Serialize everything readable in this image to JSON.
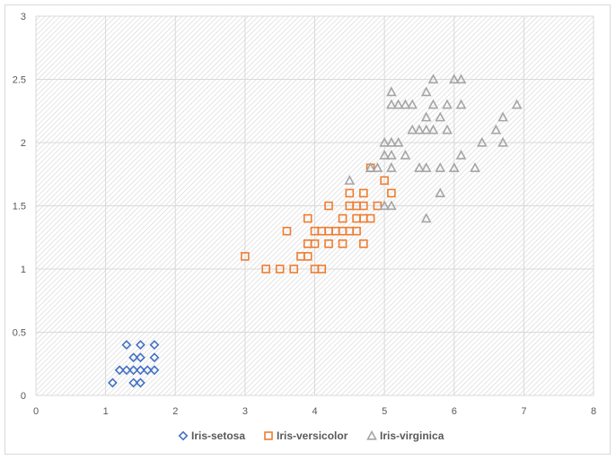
{
  "chart_data": {
    "type": "scatter",
    "title": "",
    "xlabel": "",
    "ylabel": "",
    "xlim": [
      0,
      8
    ],
    "ylim": [
      0,
      3
    ],
    "x_ticks": [
      "0",
      "1",
      "2",
      "3",
      "4",
      "5",
      "6",
      "7",
      "8"
    ],
    "y_ticks": [
      "0",
      "0.5",
      "1",
      "1.5",
      "2",
      "2.5",
      "3"
    ],
    "grid": true,
    "legend_position": "bottom",
    "series": [
      {
        "name": "Iris-setosa",
        "marker": "diamond",
        "color": "#4472c4",
        "points": [
          [
            1.1,
            0.1
          ],
          [
            1.2,
            0.2
          ],
          [
            1.3,
            0.2
          ],
          [
            1.3,
            0.4
          ],
          [
            1.4,
            0.1
          ],
          [
            1.4,
            0.2
          ],
          [
            1.4,
            0.3
          ],
          [
            1.5,
            0.1
          ],
          [
            1.5,
            0.2
          ],
          [
            1.5,
            0.3
          ],
          [
            1.5,
            0.4
          ],
          [
            1.6,
            0.2
          ],
          [
            1.7,
            0.2
          ],
          [
            1.7,
            0.3
          ],
          [
            1.7,
            0.4
          ]
        ]
      },
      {
        "name": "Iris-versicolor",
        "marker": "square",
        "color": "#ed7d31",
        "points": [
          [
            3.0,
            1.1
          ],
          [
            3.3,
            1.0
          ],
          [
            3.5,
            1.0
          ],
          [
            3.6,
            1.3
          ],
          [
            3.7,
            1.0
          ],
          [
            3.8,
            1.1
          ],
          [
            3.9,
            1.1
          ],
          [
            3.9,
            1.2
          ],
          [
            3.9,
            1.4
          ],
          [
            4.0,
            1.0
          ],
          [
            4.0,
            1.2
          ],
          [
            4.0,
            1.3
          ],
          [
            4.1,
            1.0
          ],
          [
            4.1,
            1.3
          ],
          [
            4.2,
            1.2
          ],
          [
            4.2,
            1.3
          ],
          [
            4.2,
            1.5
          ],
          [
            4.3,
            1.3
          ],
          [
            4.4,
            1.2
          ],
          [
            4.4,
            1.3
          ],
          [
            4.4,
            1.4
          ],
          [
            4.5,
            1.3
          ],
          [
            4.5,
            1.5
          ],
          [
            4.5,
            1.6
          ],
          [
            4.6,
            1.3
          ],
          [
            4.6,
            1.4
          ],
          [
            4.6,
            1.5
          ],
          [
            4.7,
            1.2
          ],
          [
            4.7,
            1.4
          ],
          [
            4.7,
            1.5
          ],
          [
            4.7,
            1.6
          ],
          [
            4.8,
            1.4
          ],
          [
            4.8,
            1.8
          ],
          [
            4.9,
            1.5
          ],
          [
            5.0,
            1.7
          ],
          [
            5.1,
            1.6
          ]
        ]
      },
      {
        "name": "Iris-virginica",
        "marker": "triangle",
        "color": "#a5a5a5",
        "points": [
          [
            4.5,
            1.7
          ],
          [
            4.8,
            1.8
          ],
          [
            4.9,
            1.8
          ],
          [
            5.0,
            1.5
          ],
          [
            5.0,
            1.9
          ],
          [
            5.0,
            2.0
          ],
          [
            5.1,
            1.5
          ],
          [
            5.1,
            1.8
          ],
          [
            5.1,
            1.9
          ],
          [
            5.1,
            2.0
          ],
          [
            5.1,
            2.3
          ],
          [
            5.1,
            2.4
          ],
          [
            5.2,
            2.0
          ],
          [
            5.2,
            2.3
          ],
          [
            5.3,
            1.9
          ],
          [
            5.3,
            2.3
          ],
          [
            5.4,
            2.1
          ],
          [
            5.4,
            2.3
          ],
          [
            5.5,
            1.8
          ],
          [
            5.5,
            2.1
          ],
          [
            5.6,
            1.4
          ],
          [
            5.6,
            1.8
          ],
          [
            5.6,
            2.1
          ],
          [
            5.6,
            2.2
          ],
          [
            5.6,
            2.4
          ],
          [
            5.7,
            2.1
          ],
          [
            5.7,
            2.3
          ],
          [
            5.7,
            2.5
          ],
          [
            5.8,
            1.6
          ],
          [
            5.8,
            1.8
          ],
          [
            5.8,
            2.2
          ],
          [
            5.9,
            2.1
          ],
          [
            5.9,
            2.3
          ],
          [
            6.0,
            1.8
          ],
          [
            6.0,
            2.5
          ],
          [
            6.1,
            1.9
          ],
          [
            6.1,
            2.3
          ],
          [
            6.1,
            2.5
          ],
          [
            6.3,
            1.8
          ],
          [
            6.4,
            2.0
          ],
          [
            6.6,
            2.1
          ],
          [
            6.7,
            2.0
          ],
          [
            6.7,
            2.2
          ],
          [
            6.9,
            2.3
          ]
        ]
      }
    ]
  }
}
